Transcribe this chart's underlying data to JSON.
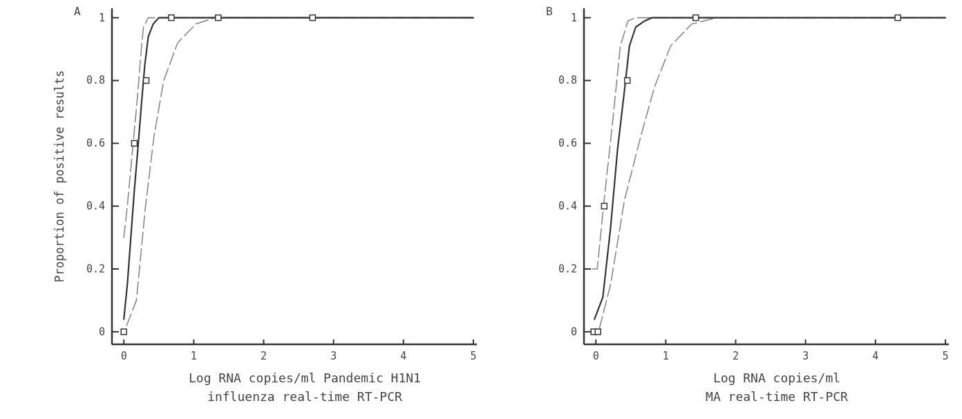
{
  "chart_data": [
    {
      "type": "line",
      "title": "A",
      "xlabel": "Log RNA copies/ml Pandemic H1N1 influenza real-time RT-PCR",
      "ylabel": "Proportion of positive results",
      "xlim": [
        -0.17,
        5.05
      ],
      "ylim": [
        -0.04,
        1.03
      ],
      "xticks": [
        0,
        1,
        2,
        3,
        4,
        5
      ],
      "yticks": [
        0,
        0.2,
        0.4,
        0.6,
        0.8,
        1
      ],
      "grid": false,
      "series": [
        {
          "color": "#888888",
          "line_style": "dashed",
          "x": [
            0,
            0.05,
            0.1,
            0.15,
            0.2,
            0.25,
            0.28,
            0.35,
            5
          ],
          "values": [
            0.3,
            0.4,
            0.52,
            0.64,
            0.76,
            0.9,
            0.97,
            1,
            1
          ]
        },
        {
          "color": "#888888",
          "line_style": "dashed",
          "x": [
            0.04,
            0.18,
            0.31,
            0.43,
            0.57,
            0.77,
            1.03,
            1.3,
            5
          ],
          "values": [
            0.02,
            0.1,
            0.4,
            0.62,
            0.8,
            0.92,
            0.98,
            1,
            1
          ]
        },
        {
          "color": "#333333",
          "line_style": "solid",
          "x": [
            0,
            0.05,
            0.1,
            0.15,
            0.2,
            0.25,
            0.3,
            0.35,
            0.42,
            0.5,
            5
          ],
          "values": [
            0.04,
            0.15,
            0.3,
            0.45,
            0.58,
            0.72,
            0.85,
            0.94,
            0.98,
            1,
            1
          ]
        },
        {
          "type": "scatter",
          "color": "#333333",
          "marker": "square",
          "x": [
            0,
            0.15,
            0.32,
            0.68,
            1.35,
            2.7
          ],
          "values": [
            0,
            0.6,
            0.8,
            1,
            1,
            1
          ]
        }
      ]
    },
    {
      "type": "line",
      "title": "B",
      "xlabel": "Log RNA copies/ml\nMA real-time RT-PCR",
      "xlim": [
        -0.17,
        5.05
      ],
      "ylim": [
        -0.04,
        1.03
      ],
      "xticks": [
        0,
        1,
        2,
        3,
        4,
        5
      ],
      "yticks": [
        0,
        0.2,
        0.4,
        0.6,
        0.8,
        1
      ],
      "grid": false,
      "series": [
        {
          "color": "#888888",
          "line_style": "dashed",
          "x": [
            -0.05,
            0.02,
            0.11,
            0.25,
            0.35,
            0.46,
            0.57,
            5
          ],
          "values": [
            0.2,
            0.2,
            0.4,
            0.69,
            0.91,
            0.99,
            1,
            1
          ]
        },
        {
          "color": "#888888",
          "line_style": "dashed",
          "x": [
            0.05,
            0.21,
            0.41,
            0.64,
            0.84,
            1.07,
            1.37,
            1.73
          ],
          "values": [
            0.01,
            0.15,
            0.42,
            0.62,
            0.78,
            0.91,
            0.98,
            1
          ]
        },
        {
          "color": "#333333",
          "line_style": "solid",
          "x": [
            -0.02,
            0.1,
            0.21,
            0.31,
            0.41,
            0.48,
            0.57,
            0.7,
            0.8,
            5
          ],
          "values": [
            0.04,
            0.11,
            0.33,
            0.58,
            0.77,
            0.91,
            0.97,
            0.99,
            1,
            1
          ]
        },
        {
          "type": "scatter",
          "color": "#333333",
          "marker": "square",
          "x": [
            -0.03,
            0.03,
            0.12,
            0.45,
            1.43,
            4.32
          ],
          "values": [
            0,
            0,
            0.4,
            0.8,
            1,
            1
          ]
        }
      ]
    }
  ]
}
